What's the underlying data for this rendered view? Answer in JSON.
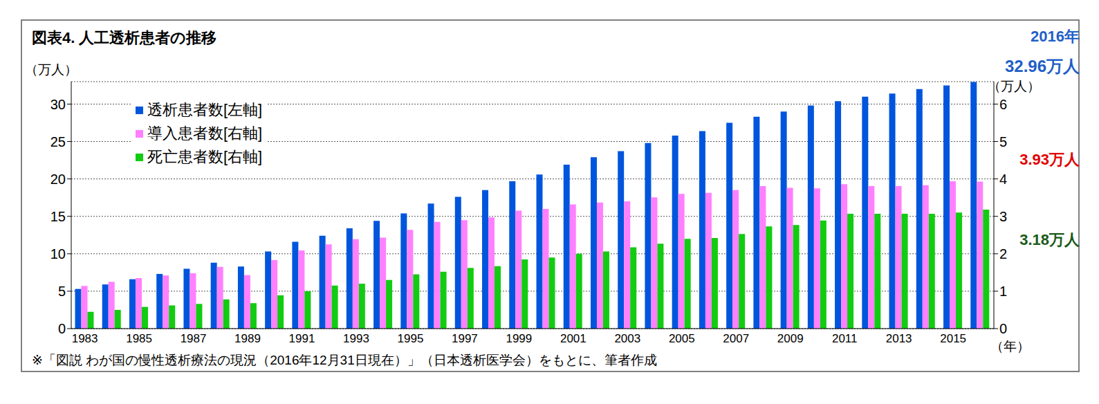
{
  "chart_data": {
    "type": "bar",
    "title": "図表4.  人工透析患者の推移",
    "y_label": "（万人）",
    "y2_label": "（万人）",
    "x_label": "（年）",
    "note": "※「図説 わが国の慢性透析療法の現況（2016年12月31日現在）」（日本透析医学会）をもとに、筆者作成",
    "categories": [
      "1983",
      null,
      "1985",
      null,
      "1987",
      null,
      "1989",
      null,
      "1991",
      null,
      "1993",
      null,
      "1995",
      null,
      "1997",
      null,
      "1999",
      null,
      "2001",
      null,
      "2003",
      null,
      "2005",
      null,
      "2007",
      null,
      "2009",
      null,
      "2011",
      null,
      "2013",
      null,
      "2015",
      null
    ],
    "series": [
      {
        "name": "透析患者数[左軸]",
        "color": "#0055dd",
        "values": [
          5.3,
          5.9,
          6.6,
          7.3,
          8.0,
          8.8,
          8.3,
          10.3,
          11.6,
          12.4,
          13.4,
          14.4,
          15.4,
          16.7,
          17.6,
          18.5,
          19.7,
          20.6,
          21.9,
          22.9,
          23.7,
          24.8,
          25.8,
          26.4,
          27.5,
          28.3,
          29.0,
          29.8,
          30.4,
          31.0,
          31.4,
          32.0,
          32.5,
          32.96
        ]
      },
      {
        "name": "導入患者数[右軸]",
        "color": "#ff80ff",
        "axis": "y2",
        "values": [
          1.14,
          1.25,
          1.35,
          1.42,
          1.48,
          1.65,
          1.43,
          1.83,
          2.09,
          2.25,
          2.39,
          2.43,
          2.64,
          2.85,
          2.9,
          2.97,
          3.15,
          3.2,
          3.32,
          3.37,
          3.4,
          3.51,
          3.6,
          3.63,
          3.7,
          3.81,
          3.76,
          3.75,
          3.86,
          3.81,
          3.81,
          3.83,
          3.94,
          3.93
        ]
      },
      {
        "name": "死亡患者数[右軸]",
        "color": "#11cc11",
        "axis": "y2",
        "values": [
          0.45,
          0.5,
          0.58,
          0.62,
          0.66,
          0.78,
          0.68,
          0.89,
          1.0,
          1.15,
          1.2,
          1.3,
          1.45,
          1.52,
          1.62,
          1.67,
          1.85,
          1.9,
          2.0,
          2.06,
          2.17,
          2.27,
          2.4,
          2.42,
          2.53,
          2.73,
          2.77,
          2.89,
          3.07,
          3.07,
          3.07,
          3.07,
          3.1,
          3.18
        ]
      }
    ],
    "ylim": [
      0,
      33
    ],
    "yticks": [
      0,
      5,
      10,
      15,
      20,
      25,
      30
    ],
    "y2lim": [
      0,
      6.6
    ],
    "y2ticks": [
      0,
      1,
      2,
      3,
      4,
      5,
      6
    ],
    "grid": true,
    "legend": "upper left",
    "annotations": [
      {
        "text": "2016年",
        "color": "#1f5fc8"
      },
      {
        "text": "32.96万人",
        "color": "#1f5fc8"
      },
      {
        "text": "3.93万人",
        "color": "#e00000"
      },
      {
        "text": "3.18万人",
        "color": "#1a5a1a"
      }
    ]
  }
}
